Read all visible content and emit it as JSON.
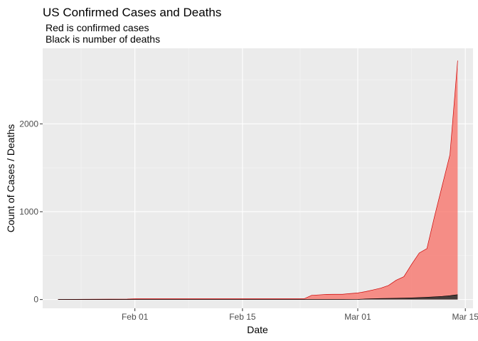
{
  "chart_data": {
    "type": "area",
    "title": "US Confirmed Cases and Deaths",
    "subtitle_lines": [
      "Red is confirmed cases",
      "Black is number of deaths"
    ],
    "xlabel": "Date",
    "ylabel": "Count of Cases / Deaths",
    "x_tick_labels": [
      "Feb 01",
      "Feb 15",
      "Mar 01",
      "Mar 15"
    ],
    "x_ticks": [
      "2020-02-01",
      "2020-02-15",
      "2020-03-01",
      "2020-03-15"
    ],
    "y_ticks": [
      0,
      1000,
      2000
    ],
    "y_tick_labels": [
      "0",
      "1000",
      "2000"
    ],
    "xlim": [
      "2020-01-20",
      "2020-03-16"
    ],
    "ylim": [
      -100,
      2860
    ],
    "grid": true,
    "background_color": "#ebebeb",
    "series": [
      {
        "color": "#f8766d",
        "stroke": "#cc0000",
        "x": [
          "2020-01-22",
          "2020-01-31",
          "2020-02-01",
          "2020-02-23",
          "2020-02-24",
          "2020-02-25",
          "2020-02-26",
          "2020-02-27",
          "2020-02-28",
          "2020-02-29",
          "2020-03-01",
          "2020-03-02",
          "2020-03-03",
          "2020-03-04",
          "2020-03-05",
          "2020-03-06",
          "2020-03-07",
          "2020-03-08",
          "2020-03-09",
          "2020-03-10",
          "2020-03-11",
          "2020-03-12",
          "2020-03-13",
          "2020-03-14"
        ],
        "values": [
          1,
          5,
          8,
          8,
          48,
          53,
          59,
          60,
          60,
          68,
          75,
          90,
          110,
          130,
          160,
          220,
          260,
          400,
          530,
          580,
          950,
          1300,
          1650,
          2720
        ]
      },
      {
        "color": "#333333",
        "stroke": "#000000",
        "x": [
          "2020-01-22",
          "2020-02-28",
          "2020-03-01",
          "2020-03-02",
          "2020-03-04",
          "2020-03-06",
          "2020-03-08",
          "2020-03-10",
          "2020-03-12",
          "2020-03-13",
          "2020-03-14"
        ],
        "values": [
          0,
          0,
          1,
          6,
          11,
          14,
          19,
          26,
          36,
          44,
          55
        ]
      }
    ]
  }
}
